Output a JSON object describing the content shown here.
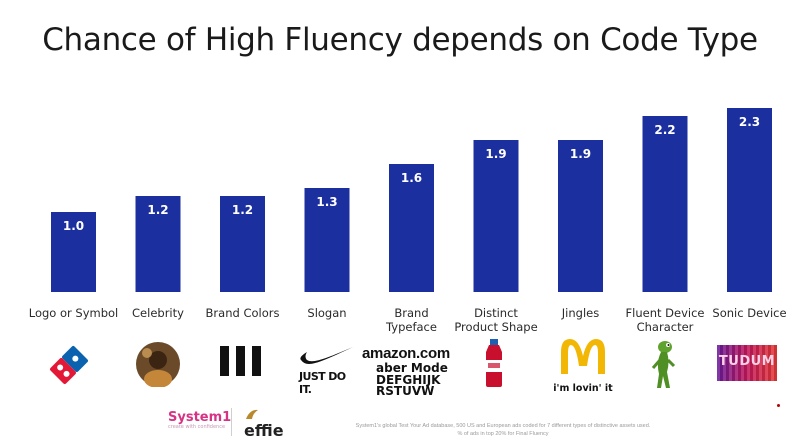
{
  "title": "Chance of High Fluency depends on Code Type",
  "chart_data": {
    "type": "bar",
    "title": "Chance of High Fluency depends on Code Type",
    "categories": [
      "Logo or Symbol",
      "Celebrity",
      "Brand Colors",
      "Slogan",
      "Brand Typeface",
      "Distinct Product Shape",
      "Jingles",
      "Fluent Device Character",
      "Sonic Device"
    ],
    "category_lines": [
      [
        "Logo or Symbol"
      ],
      [
        "Celebrity"
      ],
      [
        "Brand Colors"
      ],
      [
        "Slogan"
      ],
      [
        "Brand",
        "Typeface"
      ],
      [
        "Distinct",
        "Product Shape"
      ],
      [
        "Jingles"
      ],
      [
        "Fluent Device",
        "Character"
      ],
      [
        "Sonic Device"
      ]
    ],
    "values": [
      1.0,
      1.2,
      1.2,
      1.3,
      1.6,
      1.9,
      1.9,
      2.2,
      2.3
    ],
    "data_labels": [
      "1.0",
      "1.2",
      "1.2",
      "1.3",
      "1.6",
      "1.9",
      "1.9",
      "2.2",
      "2.3"
    ],
    "xlabel": "",
    "ylabel": "",
    "ylim": [
      0,
      2.4
    ],
    "grid": false,
    "legend": "none",
    "bar_color": "#1c2f9e",
    "label_color": "#ffffff"
  },
  "logos": {
    "dominos": "domino-logo-icon",
    "celebrity": "celebrity-portrait",
    "brand_colors": "three-bars-icon",
    "nike_swoosh": "swoosh-icon",
    "nike_text": "JUST DO IT.",
    "amazon_text": "amazon.com",
    "typeface_line1": "aber Mode",
    "typeface_line2": "DEFGHIJK",
    "typeface_line3": "RSTUVW",
    "bottle": "juice-bottle-icon",
    "mcdonalds_text": "i'm lovin' it",
    "gecko": "gecko-icon",
    "sonic_text": "TUDUM"
  },
  "footer": {
    "system1": "System1",
    "system1_tag": "create with confidence",
    "effie": "effie",
    "fine_line1": "System1's global Test Your Ad database, 500 US and European ads coded for 7 different types of distinctive assets used.",
    "fine_line2": "% of ads in top 20% for Final Fluency"
  }
}
